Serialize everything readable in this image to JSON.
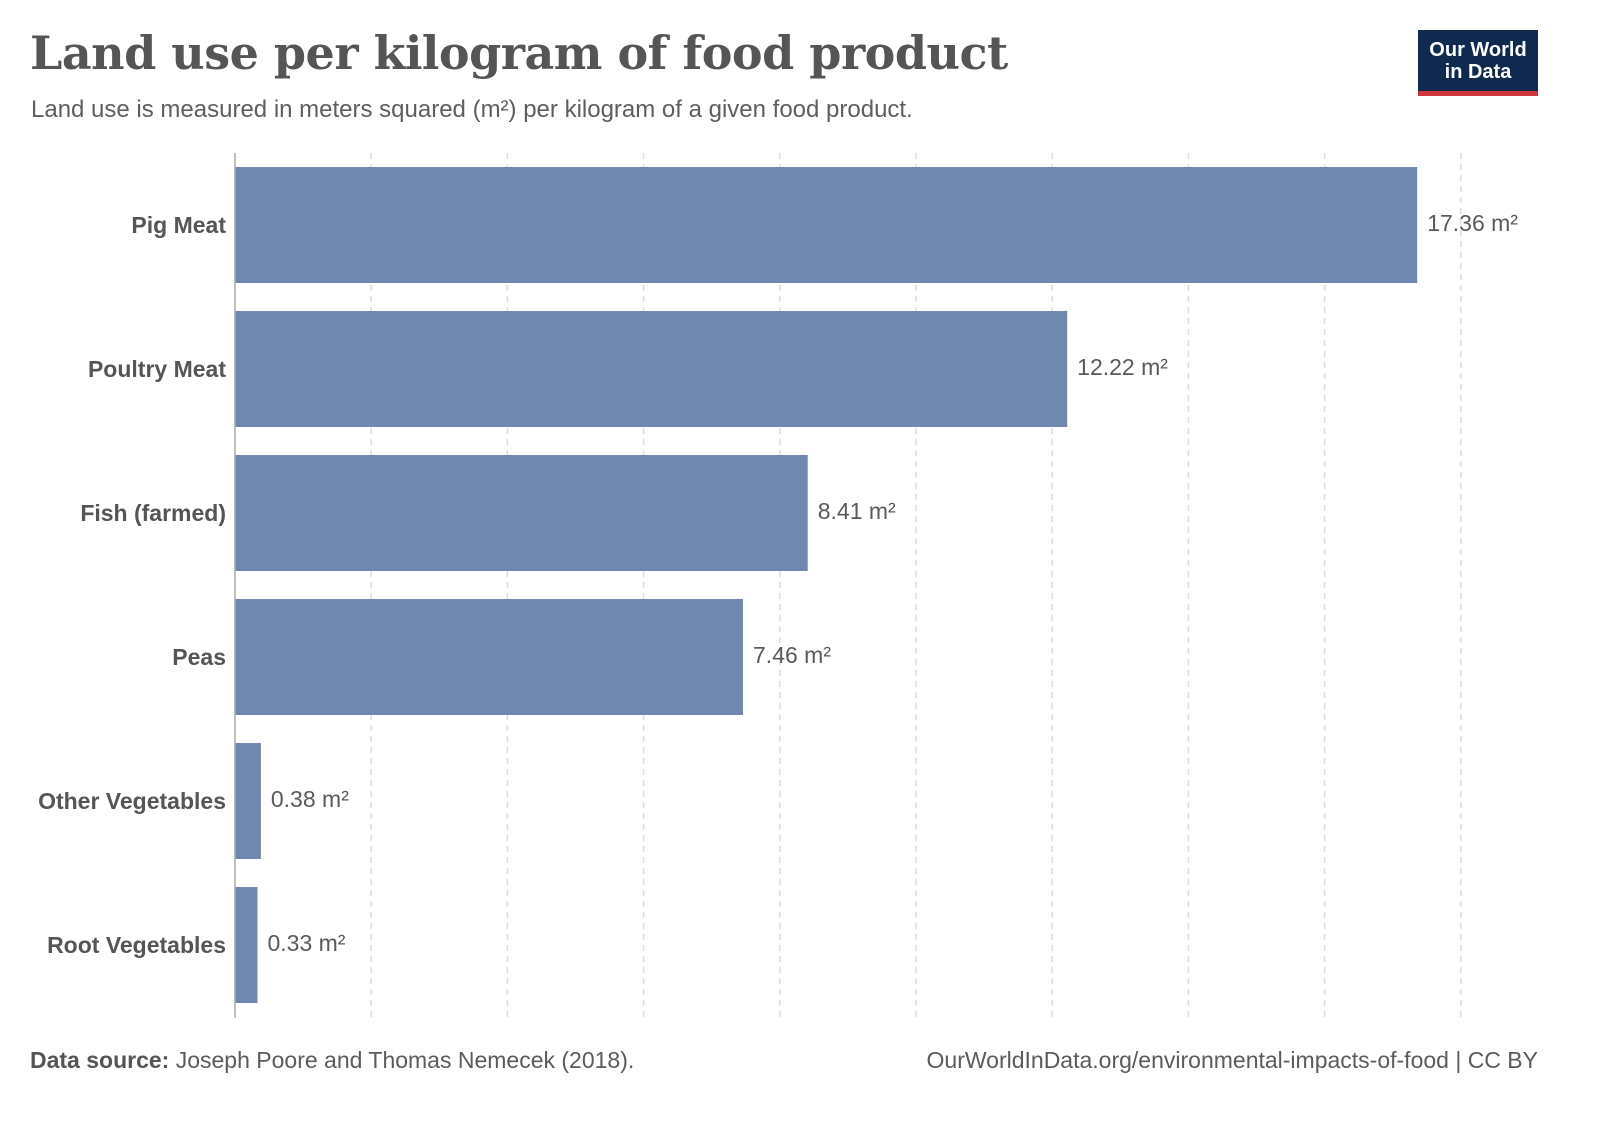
{
  "header": {
    "title": "Land use per kilogram of food product",
    "subtitle": "Land use is measured in meters squared (m²) per kilogram of a given food product."
  },
  "logo": {
    "line1": "Our World",
    "line2": "in Data",
    "bg_color": "#0f2a4e",
    "accent_color": "#d0343c"
  },
  "footer": {
    "source_label": "Data source:",
    "source_text": " Joseph Poore and Thomas Nemecek (2018).",
    "url_license": "OurWorldInData.org/environmental-impacts-of-food | CC BY"
  },
  "chart_data": {
    "type": "bar",
    "orientation": "horizontal",
    "categories": [
      "Pig Meat",
      "Poultry Meat",
      "Fish (farmed)",
      "Peas",
      "Other Vegetables",
      "Root Vegetables"
    ],
    "values": [
      17.36,
      12.22,
      8.41,
      7.46,
      0.38,
      0.33
    ],
    "value_labels": [
      "17.36 m²",
      "12.22 m²",
      "8.41 m²",
      "7.46 m²",
      "0.38 m²",
      "0.33 m²"
    ],
    "title": "Land use per kilogram of food product",
    "xlabel": "",
    "ylabel": "",
    "xlim": [
      0,
      18
    ],
    "grid": true,
    "bar_color": "#6f88b0",
    "grid_color": "#dddddd",
    "axis_color": "#aaaaaa"
  }
}
